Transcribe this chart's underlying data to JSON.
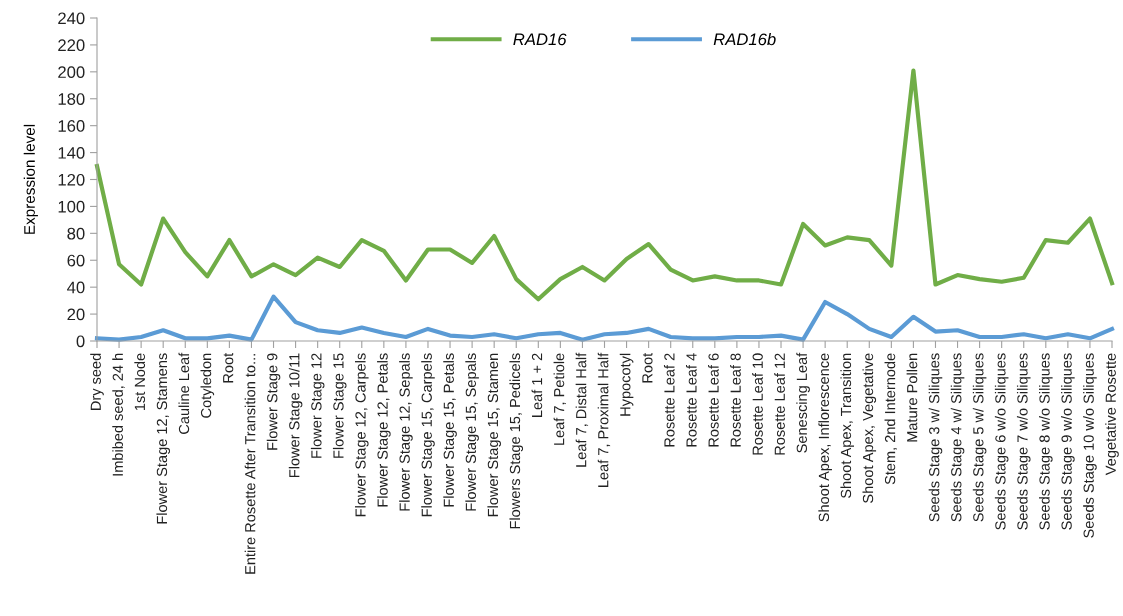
{
  "chart_data": {
    "type": "line",
    "ylabel": "Expression level",
    "categories": [
      "Dry seed",
      "Imbibed seed, 24 h",
      "1st Node",
      "Flower Stage 12, Stamens",
      "Cauline Leaf",
      "Cotyledon",
      "Root",
      "Entire Rosette After Transition to...",
      "Flower Stage 9",
      "Flower Stage 10/11",
      "Flower Stage 12",
      "Flower Stage 15",
      "Flower Stage 12, Carpels",
      "Flower Stage 12, Petals",
      "Flower Stage 12, Sepals",
      "Flower Stage 15, Carpels",
      "Flower Stage 15, Petals",
      "Flower Stage 15, Sepals",
      "Flower Stage 15, Stamen",
      "Flowers Stage 15, Pedicels",
      "Leaf 1 + 2",
      "Leaf 7, Petiole",
      "Leaf 7, Distal Half",
      "Leaf 7, Proximal Half",
      "Hypocotyl",
      "Root",
      "Rosette Leaf 2",
      "Rosette Leaf 4",
      "Rosette Leaf 6",
      "Rosette Leaf 8",
      "Rosette Leaf 10",
      "Rosette Leaf 12",
      "Senescing Leaf",
      "Shoot Apex, Inflorescence",
      "Shoot Apex, Transition",
      "Shoot Apex, Vegetative",
      "Stem, 2nd Internode",
      "Mature Pollen",
      "Seeds Stage 3 w/ Siliques",
      "Seeds Stage 4 w/ Siliques",
      "Seeds Stage 5 w/ Siliques",
      "Seeds Stage 6 w/o Siliques",
      "Seeds Stage 7 w/o Siliques",
      "Seeds Stage 8 w/o Siliques",
      "Seeds Stage 9 w/o Siliques",
      "Seeds Stage 10 w/o Siliques",
      "Vegetative Rosette"
    ],
    "series": [
      {
        "name": "RAD16",
        "color": "#70ad47",
        "values": [
          130,
          57,
          42,
          91,
          66,
          48,
          75,
          48,
          57,
          49,
          62,
          55,
          75,
          67,
          45,
          68,
          68,
          58,
          78,
          46,
          31,
          46,
          55,
          45,
          61,
          72,
          53,
          45,
          48,
          45,
          45,
          42,
          87,
          71,
          77,
          75,
          56,
          201,
          42,
          49,
          46,
          44,
          47,
          75,
          73,
          91,
          43
        ]
      },
      {
        "name": "RAD16b",
        "color": "#5b9bd5",
        "values": [
          2,
          1,
          3,
          8,
          2,
          2,
          4,
          1,
          33,
          14,
          8,
          6,
          10,
          6,
          3,
          9,
          4,
          3,
          5,
          2,
          5,
          6,
          1,
          5,
          6,
          9,
          3,
          2,
          2,
          3,
          3,
          4,
          1,
          29,
          20,
          9,
          3,
          18,
          7,
          8,
          3,
          3,
          5,
          2,
          5,
          2,
          9
        ]
      }
    ],
    "ylim": [
      0,
      240
    ],
    "yticks": [
      0,
      20,
      40,
      60,
      80,
      100,
      120,
      140,
      160,
      180,
      200,
      220,
      240
    ],
    "grid": false,
    "legend": "top",
    "marker": "none",
    "line_style": "solid"
  }
}
